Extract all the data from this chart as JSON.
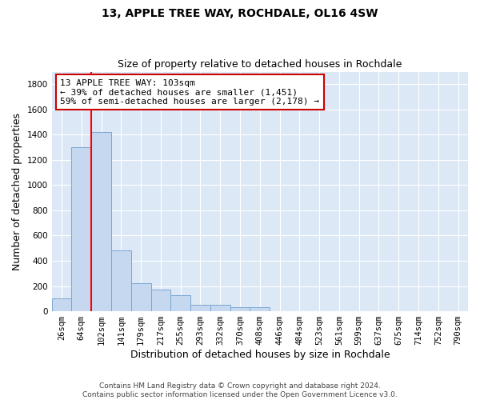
{
  "title": "13, APPLE TREE WAY, ROCHDALE, OL16 4SW",
  "subtitle": "Size of property relative to detached houses in Rochdale",
  "xlabel": "Distribution of detached houses by size in Rochdale",
  "ylabel": "Number of detached properties",
  "bar_labels": [
    "26sqm",
    "64sqm",
    "102sqm",
    "141sqm",
    "179sqm",
    "217sqm",
    "255sqm",
    "293sqm",
    "332sqm",
    "370sqm",
    "408sqm",
    "446sqm",
    "484sqm",
    "523sqm",
    "561sqm",
    "599sqm",
    "637sqm",
    "675sqm",
    "714sqm",
    "752sqm",
    "790sqm"
  ],
  "bar_heights": [
    100,
    1300,
    1420,
    480,
    220,
    170,
    130,
    50,
    50,
    30,
    30,
    0,
    0,
    0,
    0,
    0,
    0,
    0,
    0,
    0,
    0
  ],
  "bar_color": "#c5d8ef",
  "bar_edge_color": "#7ba7d0",
  "red_line_index": 2,
  "annotation_lines": [
    "13 APPLE TREE WAY: 103sqm",
    "← 39% of detached houses are smaller (1,451)",
    "59% of semi-detached houses are larger (2,178) →"
  ],
  "annotation_box_color": "#ffffff",
  "annotation_box_edge_color": "#cc0000",
  "ylim": [
    0,
    1900
  ],
  "yticks": [
    0,
    200,
    400,
    600,
    800,
    1000,
    1200,
    1400,
    1600,
    1800
  ],
  "footer_line1": "Contains HM Land Registry data © Crown copyright and database right 2024.",
  "footer_line2": "Contains public sector information licensed under the Open Government Licence v3.0.",
  "fig_background_color": "#ffffff",
  "plot_background_color": "#dce8f5",
  "grid_color": "#ffffff",
  "title_fontsize": 10,
  "subtitle_fontsize": 9,
  "axis_label_fontsize": 9,
  "tick_fontsize": 7.5,
  "annotation_fontsize": 8,
  "footer_fontsize": 6.5
}
